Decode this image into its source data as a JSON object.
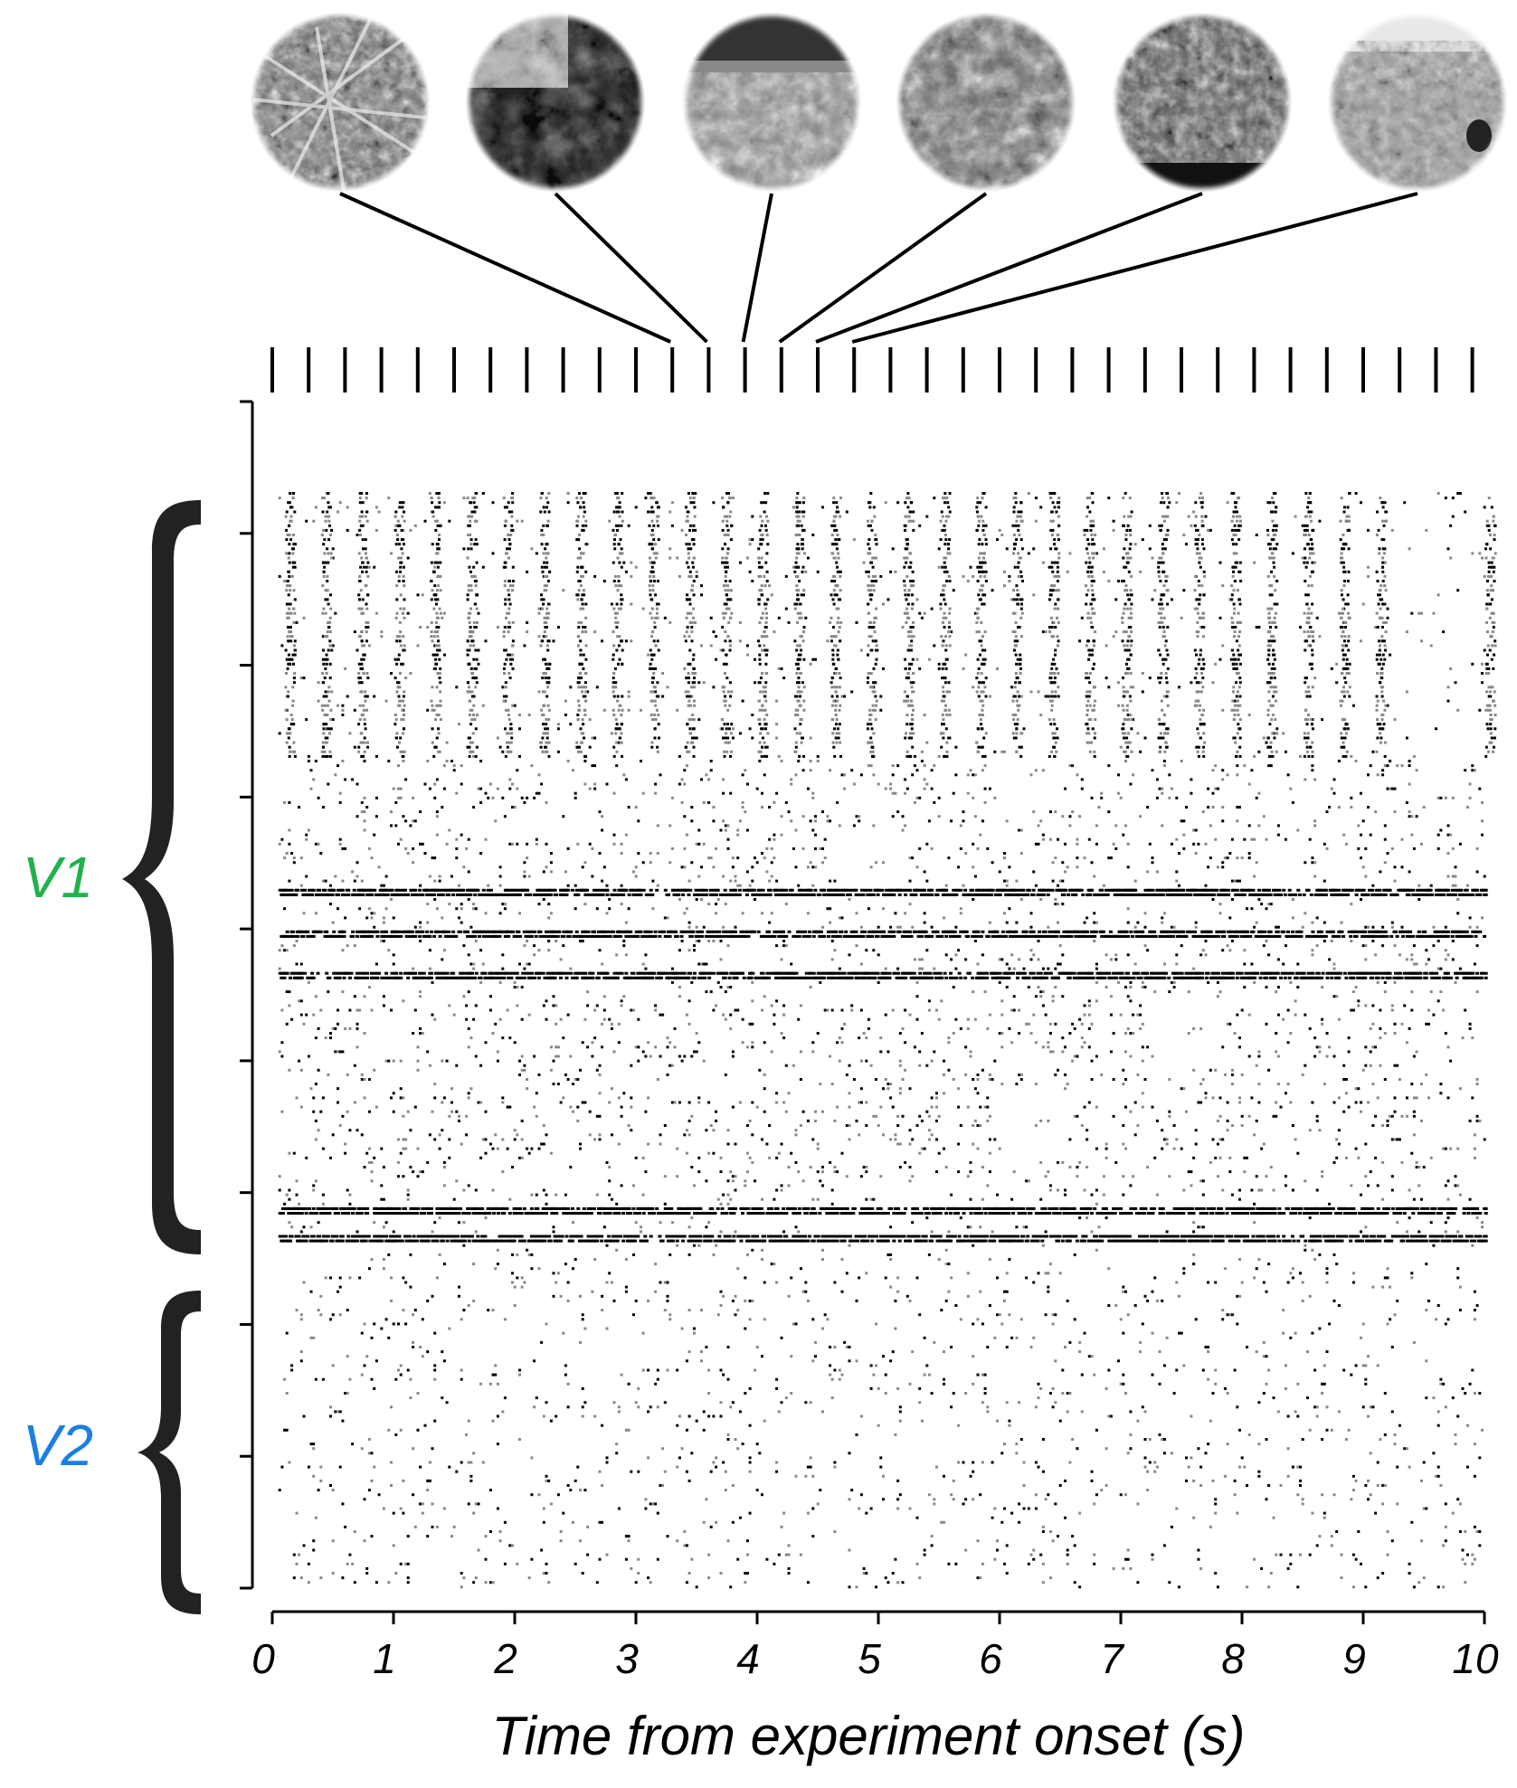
{
  "chart_data": {
    "type": "scatter",
    "xlabel": "Time from experiment onset (s)",
    "xlim": [
      0,
      10
    ],
    "xticks": [
      "0",
      "1",
      "2",
      "3",
      "4",
      "5",
      "6",
      "7",
      "8",
      "9",
      "10"
    ],
    "ylim": [
      0,
      90
    ],
    "yticks": [
      0,
      10,
      20,
      30,
      40,
      50,
      60,
      70,
      80,
      90
    ],
    "stimulus_onsets_s": [
      0,
      0.3,
      0.6,
      0.9,
      1.2,
      1.5,
      1.8,
      2.1,
      2.4,
      2.7,
      3.0,
      3.3,
      3.6,
      3.9,
      4.2,
      4.5,
      4.8,
      5.1,
      5.4,
      5.7,
      6.0,
      6.3,
      6.6,
      6.9,
      7.2,
      7.5,
      7.8,
      8.1,
      8.4,
      8.7,
      9.0,
      9.3,
      9.6,
      9.9
    ],
    "highlighted_stimuli": [
      {
        "image": "grass-closeup",
        "onset_s": 3.3
      },
      {
        "image": "tree-silhouette",
        "onset_s": 3.6
      },
      {
        "image": "meadow-flowers",
        "onset_s": 3.9
      },
      {
        "image": "rocky-ground",
        "onset_s": 4.2
      },
      {
        "image": "lichen-rock",
        "onset_s": 4.5
      },
      {
        "image": "savanna-monkey",
        "onset_s": 4.8
      }
    ],
    "regions": [
      {
        "name": "V1",
        "color": "#22b14c",
        "neuron_range": [
          30,
          83
        ]
      },
      {
        "name": "V2",
        "color": "#1a7fe0",
        "neuron_range": [
          0,
          23
        ]
      }
    ],
    "spike_colors": {
      "black": "#000000",
      "gray": "#888888"
    }
  }
}
